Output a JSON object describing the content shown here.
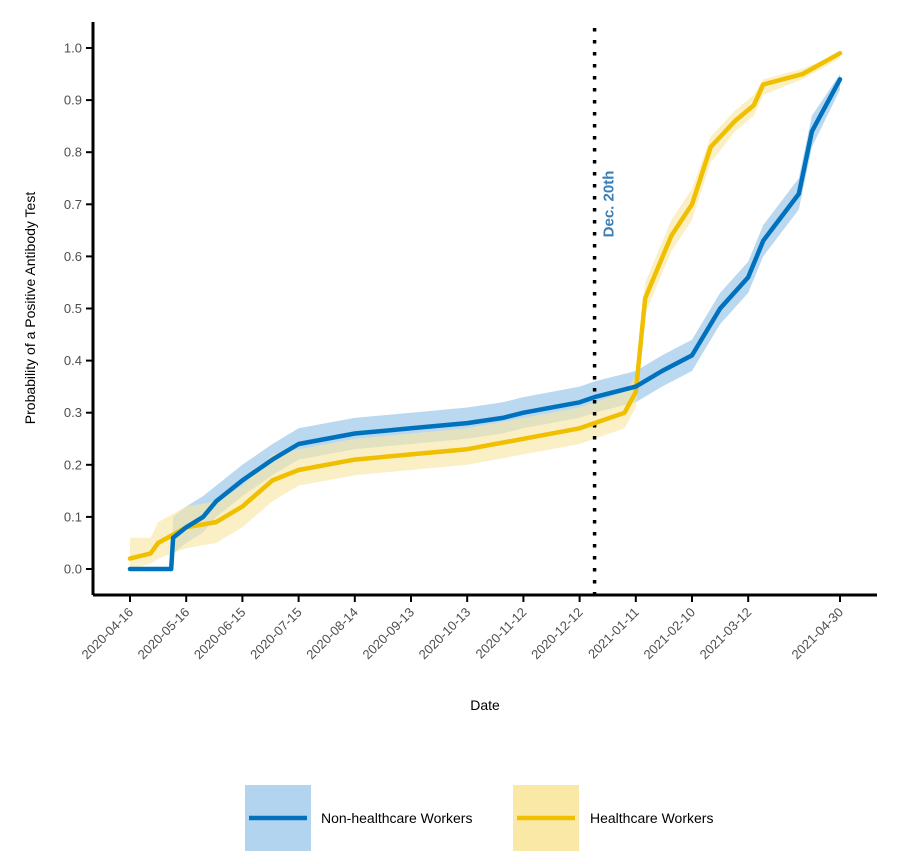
{
  "chart_data": {
    "type": "line",
    "title": "",
    "xlabel": "Date",
    "ylabel": "Probability of a Positive Antibody Test",
    "xlim": [
      "2020-04-16",
      "2021-04-30"
    ],
    "ylim": [
      0,
      1
    ],
    "x_ticks": [
      "2020-04-16",
      "2020-05-16",
      "2020-06-15",
      "2020-07-15",
      "2020-08-14",
      "2020-09-13",
      "2020-10-13",
      "2020-11-12",
      "2020-12-12",
      "2021-01-11",
      "2021-02-10",
      "2021-03-12",
      "2021-04-30"
    ],
    "y_ticks": [
      "0.0",
      "0.1",
      "0.2",
      "0.3",
      "0.4",
      "0.5",
      "0.6",
      "0.7",
      "0.8",
      "0.9",
      "1.0"
    ],
    "grid": false,
    "legend_position": "bottom",
    "annotations": [
      {
        "type": "vline",
        "x": "2020-12-20",
        "label": "Dec. 20th",
        "style": "dotted",
        "color": "#3a7fb8"
      }
    ],
    "series": [
      {
        "name": "Non-healthcare Workers",
        "line_color": "#0072bd",
        "band_color": "#b3d4ee",
        "points": [
          {
            "x": "2020-04-16",
            "y": 0.0,
            "lo": 0.0,
            "hi": 0.0
          },
          {
            "x": "2020-05-08",
            "y": 0.0,
            "lo": 0.0,
            "hi": 0.0
          },
          {
            "x": "2020-05-09",
            "y": 0.06,
            "lo": 0.03,
            "hi": 0.1
          },
          {
            "x": "2020-05-16",
            "y": 0.08,
            "lo": 0.05,
            "hi": 0.12
          },
          {
            "x": "2020-05-25",
            "y": 0.1,
            "lo": 0.07,
            "hi": 0.14
          },
          {
            "x": "2020-06-01",
            "y": 0.13,
            "lo": 0.1,
            "hi": 0.16
          },
          {
            "x": "2020-06-15",
            "y": 0.17,
            "lo": 0.14,
            "hi": 0.2
          },
          {
            "x": "2020-07-01",
            "y": 0.21,
            "lo": 0.18,
            "hi": 0.24
          },
          {
            "x": "2020-07-15",
            "y": 0.24,
            "lo": 0.21,
            "hi": 0.27
          },
          {
            "x": "2020-08-14",
            "y": 0.26,
            "lo": 0.23,
            "hi": 0.29
          },
          {
            "x": "2020-09-13",
            "y": 0.27,
            "lo": 0.24,
            "hi": 0.3
          },
          {
            "x": "2020-10-13",
            "y": 0.28,
            "lo": 0.25,
            "hi": 0.31
          },
          {
            "x": "2020-11-01",
            "y": 0.29,
            "lo": 0.26,
            "hi": 0.32
          },
          {
            "x": "2020-11-12",
            "y": 0.3,
            "lo": 0.27,
            "hi": 0.33
          },
          {
            "x": "2020-12-12",
            "y": 0.32,
            "lo": 0.29,
            "hi": 0.35
          },
          {
            "x": "2020-12-20",
            "y": 0.33,
            "lo": 0.3,
            "hi": 0.36
          },
          {
            "x": "2021-01-11",
            "y": 0.35,
            "lo": 0.32,
            "hi": 0.38
          },
          {
            "x": "2021-01-25",
            "y": 0.38,
            "lo": 0.35,
            "hi": 0.41
          },
          {
            "x": "2021-02-10",
            "y": 0.41,
            "lo": 0.38,
            "hi": 0.44
          },
          {
            "x": "2021-02-25",
            "y": 0.5,
            "lo": 0.47,
            "hi": 0.53
          },
          {
            "x": "2021-03-12",
            "y": 0.56,
            "lo": 0.53,
            "hi": 0.59
          },
          {
            "x": "2021-03-20",
            "y": 0.63,
            "lo": 0.6,
            "hi": 0.66
          },
          {
            "x": "2021-04-08",
            "y": 0.72,
            "lo": 0.69,
            "hi": 0.75
          },
          {
            "x": "2021-04-15",
            "y": 0.84,
            "lo": 0.81,
            "hi": 0.87
          },
          {
            "x": "2021-04-30",
            "y": 0.94,
            "lo": 0.92,
            "hi": 0.95
          }
        ]
      },
      {
        "name": "Healthcare Workers",
        "line_color": "#efbf00",
        "band_color": "#f9e8a6",
        "points": [
          {
            "x": "2020-04-16",
            "y": 0.02,
            "lo": 0.0,
            "hi": 0.06
          },
          {
            "x": "2020-04-27",
            "y": 0.03,
            "lo": 0.01,
            "hi": 0.06
          },
          {
            "x": "2020-05-01",
            "y": 0.05,
            "lo": 0.02,
            "hi": 0.09
          },
          {
            "x": "2020-05-16",
            "y": 0.08,
            "lo": 0.04,
            "hi": 0.12
          },
          {
            "x": "2020-06-01",
            "y": 0.09,
            "lo": 0.05,
            "hi": 0.13
          },
          {
            "x": "2020-06-15",
            "y": 0.12,
            "lo": 0.08,
            "hi": 0.16
          },
          {
            "x": "2020-07-01",
            "y": 0.17,
            "lo": 0.13,
            "hi": 0.22
          },
          {
            "x": "2020-07-15",
            "y": 0.19,
            "lo": 0.16,
            "hi": 0.23
          },
          {
            "x": "2020-08-14",
            "y": 0.21,
            "lo": 0.18,
            "hi": 0.25
          },
          {
            "x": "2020-09-13",
            "y": 0.22,
            "lo": 0.19,
            "hi": 0.26
          },
          {
            "x": "2020-10-13",
            "y": 0.23,
            "lo": 0.2,
            "hi": 0.27
          },
          {
            "x": "2020-11-12",
            "y": 0.25,
            "lo": 0.22,
            "hi": 0.29
          },
          {
            "x": "2020-12-12",
            "y": 0.27,
            "lo": 0.24,
            "hi": 0.31
          },
          {
            "x": "2020-12-20",
            "y": 0.28,
            "lo": 0.25,
            "hi": 0.32
          },
          {
            "x": "2021-01-05",
            "y": 0.3,
            "lo": 0.27,
            "hi": 0.34
          },
          {
            "x": "2021-01-11",
            "y": 0.34,
            "lo": 0.31,
            "hi": 0.37
          },
          {
            "x": "2021-01-16",
            "y": 0.52,
            "lo": 0.49,
            "hi": 0.55
          },
          {
            "x": "2021-01-30",
            "y": 0.64,
            "lo": 0.61,
            "hi": 0.67
          },
          {
            "x": "2021-02-10",
            "y": 0.7,
            "lo": 0.67,
            "hi": 0.73
          },
          {
            "x": "2021-02-20",
            "y": 0.81,
            "lo": 0.78,
            "hi": 0.83
          },
          {
            "x": "2021-03-05",
            "y": 0.86,
            "lo": 0.84,
            "hi": 0.88
          },
          {
            "x": "2021-03-15",
            "y": 0.89,
            "lo": 0.87,
            "hi": 0.91
          },
          {
            "x": "2021-03-20",
            "y": 0.93,
            "lo": 0.91,
            "hi": 0.94
          },
          {
            "x": "2021-04-10",
            "y": 0.95,
            "lo": 0.94,
            "hi": 0.96
          },
          {
            "x": "2021-04-30",
            "y": 0.99,
            "lo": 0.98,
            "hi": 0.99
          }
        ]
      }
    ]
  }
}
